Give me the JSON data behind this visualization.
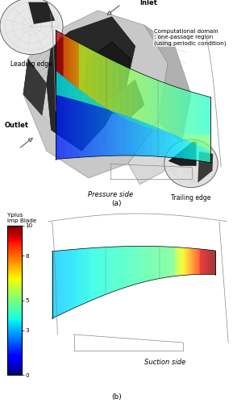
{
  "title_a": "(a)",
  "title_b": "(b)",
  "colorbar_label": "Yplus\nimp Blade",
  "colorbar_ticks": [
    0,
    3,
    5,
    8,
    10
  ],
  "colorbar_vmin": 0,
  "colorbar_vmax": 10,
  "label_leading_edge": "Leading edge",
  "label_trailing_edge": "Trailing edge",
  "label_inlet": "Inlet",
  "label_outlet": "Outlet",
  "label_comp_domain": "Computational domain\n: one-passage region\n(using periodic condition)",
  "label_pressure": "Pressure side",
  "label_suction": "Suction side",
  "bg_color": "#ffffff",
  "fs": 5.5,
  "figure_width": 2.89,
  "figure_height": 5.0,
  "dpi": 100
}
